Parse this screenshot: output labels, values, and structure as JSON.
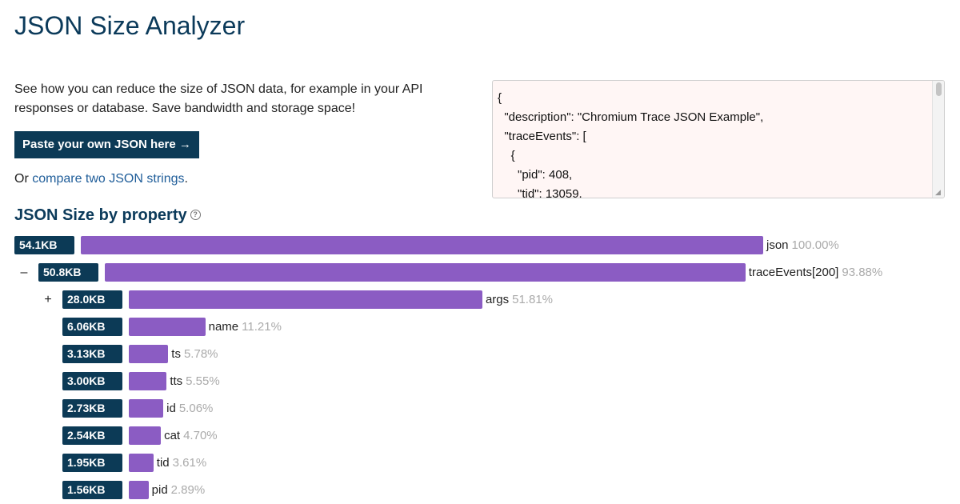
{
  "page": {
    "title": "JSON Size Analyzer",
    "intro": "See how you can reduce the size of JSON data, for example in your API responses or database. Save bandwidth and storage space!",
    "paste_button": "Paste your own JSON here →",
    "compare_prefix": "Or ",
    "compare_link": "compare two JSON strings",
    "compare_suffix": "."
  },
  "editor": {
    "content": "{\n  \"description\": \"Chromium Trace JSON Example\",\n  \"traceEvents\": [\n    {\n      \"pid\": 408,\n      \"tid\": 13059,"
  },
  "section": {
    "title": "JSON Size by property",
    "help_icon": "?"
  },
  "colors": {
    "bar": "#8b5cc3",
    "badge": "#0c3a56",
    "title": "#0b3a5a"
  },
  "chart_data": {
    "type": "bar",
    "title": "JSON Size by property",
    "rows": [
      {
        "toggle": "",
        "size": "54.1KB",
        "name": "json",
        "percent": "100.00%",
        "value": 100.0,
        "depth": 0
      },
      {
        "toggle": "–",
        "size": "50.8KB",
        "name": "traceEvents[200]",
        "percent": "93.88%",
        "value": 93.88,
        "depth": 1
      },
      {
        "toggle": "+",
        "size": "28.0KB",
        "name": "args",
        "percent": "51.81%",
        "value": 51.81,
        "depth": 2
      },
      {
        "toggle": "",
        "size": "6.06KB",
        "name": "name",
        "percent": "11.21%",
        "value": 11.21,
        "depth": 2
      },
      {
        "toggle": "",
        "size": "3.13KB",
        "name": "ts",
        "percent": "5.78%",
        "value": 5.78,
        "depth": 2
      },
      {
        "toggle": "",
        "size": "3.00KB",
        "name": "tts",
        "percent": "5.55%",
        "value": 5.55,
        "depth": 2
      },
      {
        "toggle": "",
        "size": "2.73KB",
        "name": "id",
        "percent": "5.06%",
        "value": 5.06,
        "depth": 2
      },
      {
        "toggle": "",
        "size": "2.54KB",
        "name": "cat",
        "percent": "4.70%",
        "value": 4.7,
        "depth": 2
      },
      {
        "toggle": "",
        "size": "1.95KB",
        "name": "tid",
        "percent": "3.61%",
        "value": 3.61,
        "depth": 2
      },
      {
        "toggle": "",
        "size": "1.56KB",
        "name": "pid",
        "percent": "2.89%",
        "value": 2.89,
        "depth": 2
      }
    ]
  }
}
